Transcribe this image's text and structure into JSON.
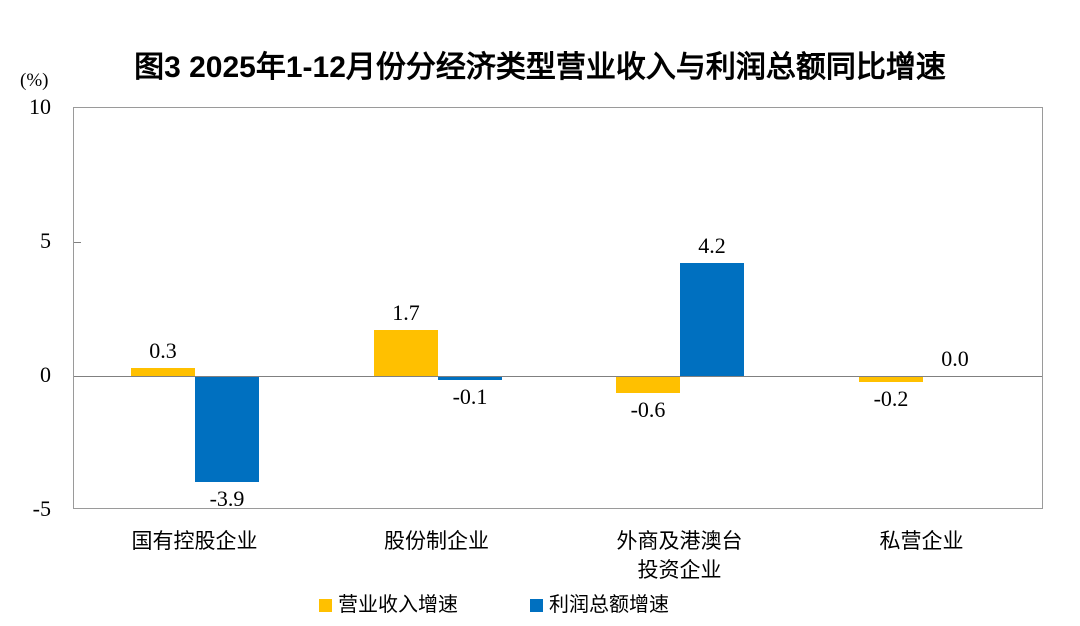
{
  "chart_data": {
    "type": "bar",
    "title": "图3  2025年1-12月份分经济类型营业收入与利润总额同比增速",
    "unit_label": "(%)",
    "categories": [
      "国有控股企业",
      "股份制企业",
      "外商及港澳台\n投资企业",
      "私营企业"
    ],
    "series": [
      {
        "name": "营业收入增速",
        "color": "#FFC000",
        "values": [
          0.3,
          1.7,
          -0.6,
          -0.2
        ],
        "labels": [
          "0.3",
          "1.7",
          "-0.6",
          "-0.2"
        ]
      },
      {
        "name": "利润总额增速",
        "color": "#0070C0",
        "values": [
          -3.9,
          -0.1,
          4.2,
          0.0
        ],
        "labels": [
          "-3.9",
          "-0.1",
          "4.2",
          "0.0"
        ]
      }
    ],
    "ylim": [
      -5,
      10
    ],
    "yticks": [
      10,
      5,
      0,
      -5
    ],
    "ytick_labels": [
      "10",
      "5",
      "0",
      "-5"
    ],
    "xlabel": "",
    "ylabel": "(%)",
    "grid": false,
    "legend_position": "bottom"
  }
}
